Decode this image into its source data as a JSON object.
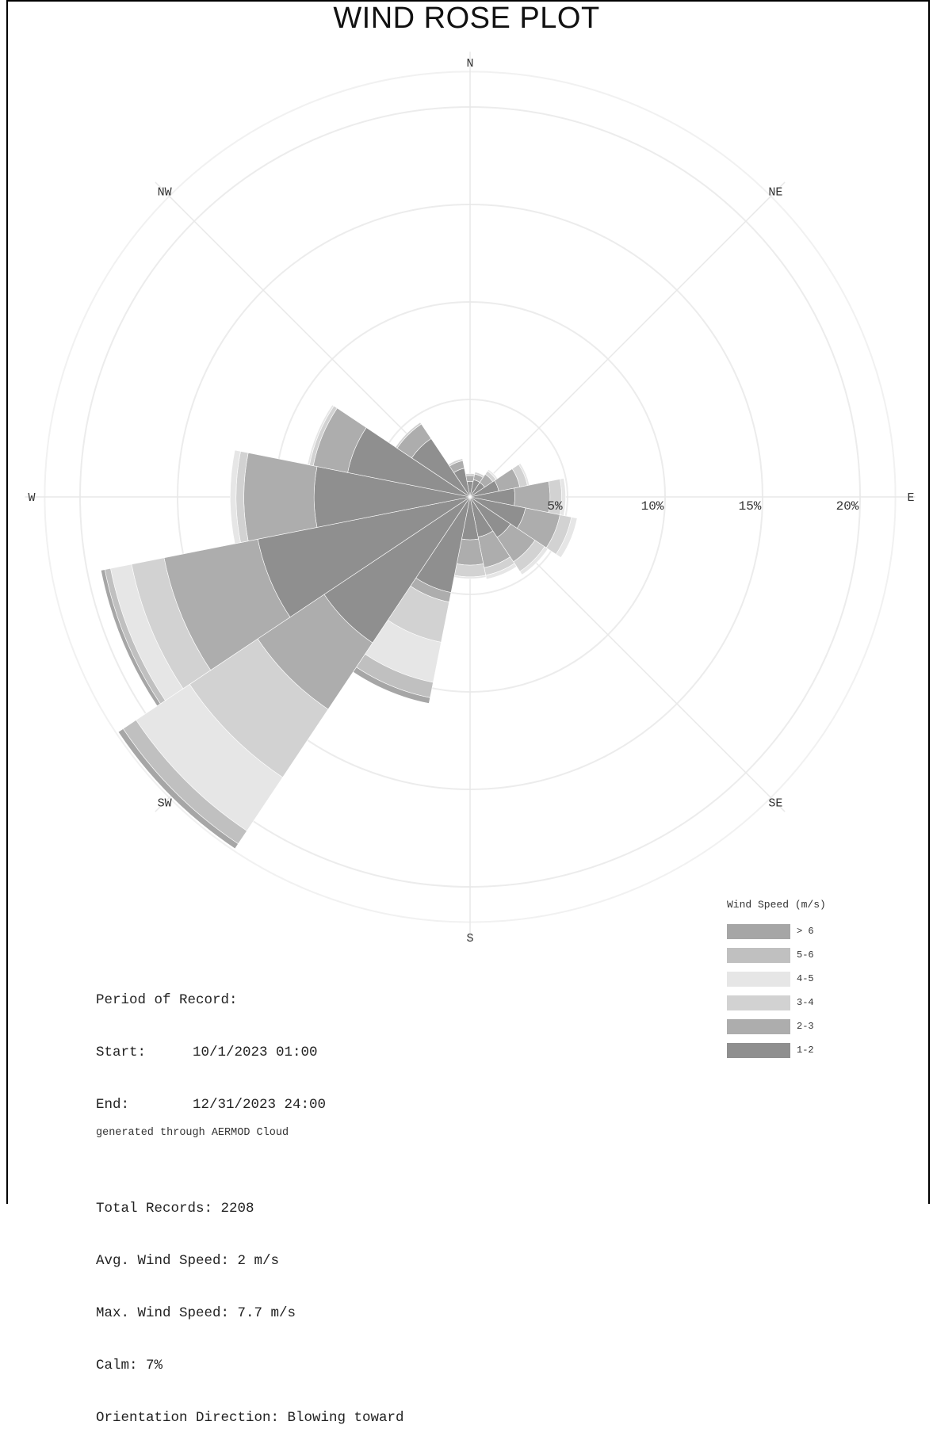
{
  "title": "WIND ROSE PLOT",
  "chart_data": {
    "type": "wind-rose",
    "orientation": "Blowing toward",
    "directions": [
      "N",
      "NNE",
      "NE",
      "ENE",
      "E",
      "ESE",
      "SE",
      "SSE",
      "S",
      "SSW",
      "SW",
      "WSW",
      "W",
      "WNW",
      "NW",
      "NNW"
    ],
    "compass_labels": [
      "N",
      "NE",
      "E",
      "SE",
      "S",
      "SW",
      "W",
      "NW"
    ],
    "radial_ticks": [
      5,
      10,
      15,
      20
    ],
    "radial_tick_labels": [
      "5%",
      "10%",
      "15%",
      "20%"
    ],
    "radial_max": 21,
    "speed_bins": [
      "1-2",
      "2-3",
      "3-4",
      "4-5",
      "5-6",
      "> 6"
    ],
    "bin_colors": [
      "#8f8f8f",
      "#adadad",
      "#d2d2d2",
      "#e6e6e6",
      "#c0c0c0",
      "#a6a6a6"
    ],
    "frequencies_pct": {
      "N": [
        0.8,
        0.3,
        0.1,
        0.0,
        0.0,
        0.0
      ],
      "NNE": [
        0.9,
        0.3,
        0.1,
        0.0,
        0.0,
        0.0
      ],
      "NE": [
        0.9,
        0.5,
        0.2,
        0.1,
        0.0,
        0.0
      ],
      "ENE": [
        1.5,
        1.1,
        0.4,
        0.1,
        0.0,
        0.0
      ],
      "E": [
        2.3,
        1.8,
        0.6,
        0.2,
        0.0,
        0.0
      ],
      "ESE": [
        2.9,
        1.8,
        0.6,
        0.3,
        0.0,
        0.0
      ],
      "SE": [
        2.5,
        1.5,
        0.6,
        0.2,
        0.0,
        0.0
      ],
      "SSE": [
        2.1,
        1.6,
        0.4,
        0.2,
        0.0,
        0.0
      ],
      "S": [
        2.2,
        1.3,
        0.6,
        0.1,
        0.0,
        0.0
      ],
      "SSW": [
        5.0,
        0.5,
        2.1,
        2.1,
        0.8,
        0.3
      ],
      "SW": [
        9.0,
        4.1,
        4.2,
        3.3,
        0.8,
        0.3
      ],
      "WSW": [
        11.1,
        4.9,
        1.7,
        1.1,
        0.3,
        0.2
      ],
      "W": [
        8.0,
        3.6,
        0.4,
        0.3,
        0.0,
        0.0
      ],
      "WNW": [
        6.4,
        1.8,
        0.2,
        0.1,
        0.0,
        0.0
      ],
      "NW": [
        3.6,
        0.9,
        0.1,
        0.0,
        0.0,
        0.0
      ],
      "NNW": [
        1.5,
        0.4,
        0.1,
        0.0,
        0.0,
        0.0
      ]
    }
  },
  "legend": {
    "title": "Wind Speed (m/s)",
    "items": [
      {
        "label": "> 6",
        "color": "#a6a6a6"
      },
      {
        "label": "5-6",
        "color": "#c0c0c0"
      },
      {
        "label": "4-5",
        "color": "#e6e6e6"
      },
      {
        "label": "3-4",
        "color": "#d2d2d2"
      },
      {
        "label": "2-3",
        "color": "#adadad"
      },
      {
        "label": "1-2",
        "color": "#8f8f8f"
      }
    ]
  },
  "info": {
    "period_heading": "Period of Record:",
    "start_label": "Start:",
    "start_value": "10/1/2023 01:00",
    "end_label": "End:",
    "end_value": "12/31/2023 24:00",
    "total_records": "Total Records: 2208",
    "avg_speed": "Avg. Wind Speed: 2 m/s",
    "max_speed": "Max. Wind Speed: 7.7 m/s",
    "calm": "Calm: 7%",
    "orientation": "Orientation Direction: Blowing toward",
    "generated": "generated through AERMOD Cloud"
  }
}
